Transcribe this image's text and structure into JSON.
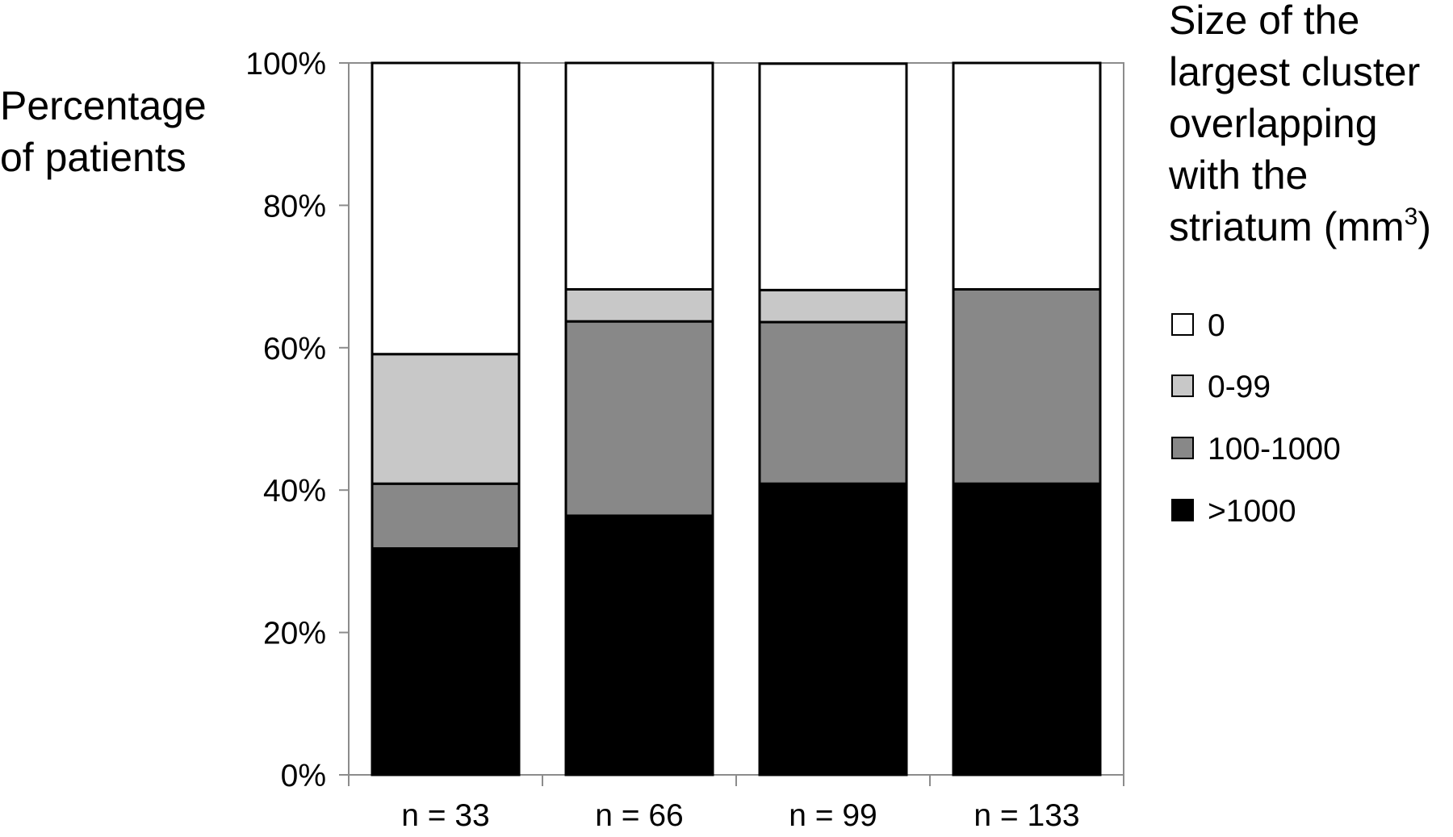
{
  "chart_data": {
    "type": "bar",
    "stacked": true,
    "percent": true,
    "ylabel": "Percentage of patients",
    "xlabel": "",
    "ylim": [
      0,
      100
    ],
    "y_ticks": [
      "0%",
      "20%",
      "40%",
      "60%",
      "80%",
      "100%"
    ],
    "y_tick_values": [
      0,
      20,
      40,
      60,
      80,
      100
    ],
    "categories": [
      "n = 33",
      "n = 66",
      "n = 99",
      "n = 133"
    ],
    "legend_title": [
      "Size of the",
      "largest cluster",
      "overlapping",
      "with the",
      "striatum (mm",
      "3",
      ")"
    ],
    "legend_position": "right",
    "grid": false,
    "series": [
      {
        "name": ">1000",
        "color": "#000000",
        "values": [
          31.8,
          36.4,
          40.9,
          40.9
        ]
      },
      {
        "name": "100-1000",
        "color": "#888888",
        "values": [
          9.1,
          27.3,
          22.7,
          27.3
        ]
      },
      {
        "name": "0-99",
        "color": "#c8c8c8",
        "values": [
          18.2,
          4.5,
          4.5,
          0
        ]
      },
      {
        "name": "0",
        "color": "#ffffff",
        "values": [
          40.9,
          31.8,
          31.8,
          31.8
        ]
      }
    ],
    "legend_order": [
      "0",
      "0-99",
      "100-1000",
      ">1000"
    ]
  }
}
